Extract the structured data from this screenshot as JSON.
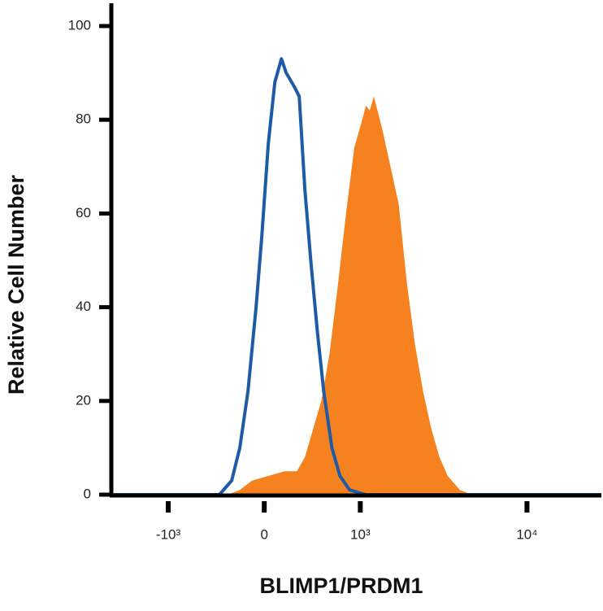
{
  "chart_data": {
    "type": "line",
    "xlabel": "BLIMP1/PRDM1",
    "ylabel": "Relative Cell Number",
    "xscale": "asinh",
    "xlim": [
      -2200,
      27000
    ],
    "ylim": [
      0,
      100
    ],
    "xticks": [
      {
        "value": -1000,
        "label": "-10³"
      },
      0,
      {
        "value": 1000,
        "label": "10³"
      },
      {
        "value": 10000,
        "label": "10⁴"
      }
    ],
    "yticks": [
      0,
      20,
      40,
      60,
      80,
      100
    ],
    "series": [
      {
        "color": "#f5821f",
        "fill": true,
        "x": [
          -2200,
          -306,
          -200,
          -99,
          33,
          166,
          270,
          343,
          421,
          504,
          592,
          686,
          795,
          909,
          1030,
          1090,
          1156,
          1228,
          1391,
          1565,
          1758,
          1975,
          2209,
          2468,
          2763,
          3088,
          3449,
          4070,
          4792,
          27000
        ],
        "values": [
          0,
          0,
          1,
          3,
          4,
          5,
          5,
          8,
          14,
          20,
          30,
          44,
          60,
          74,
          80,
          83,
          82,
          85,
          78,
          70,
          62,
          45,
          32,
          22,
          14,
          8,
          4,
          1,
          0,
          0
        ]
      },
      {
        "color": "#1f5aa6",
        "fill": false,
        "x": [
          -2200,
          -382,
          -270,
          -200,
          -132,
          -66,
          -20,
          33,
          85,
          139,
          179,
          249,
          291,
          343,
          398,
          462,
          530,
          620,
          716,
          843,
          1090,
          27000
        ],
        "values": [
          0,
          0,
          3,
          10,
          22,
          40,
          55,
          75,
          88,
          93,
          90,
          87,
          85,
          65,
          50,
          35,
          22,
          10,
          4,
          1,
          0,
          0
        ]
      }
    ]
  }
}
